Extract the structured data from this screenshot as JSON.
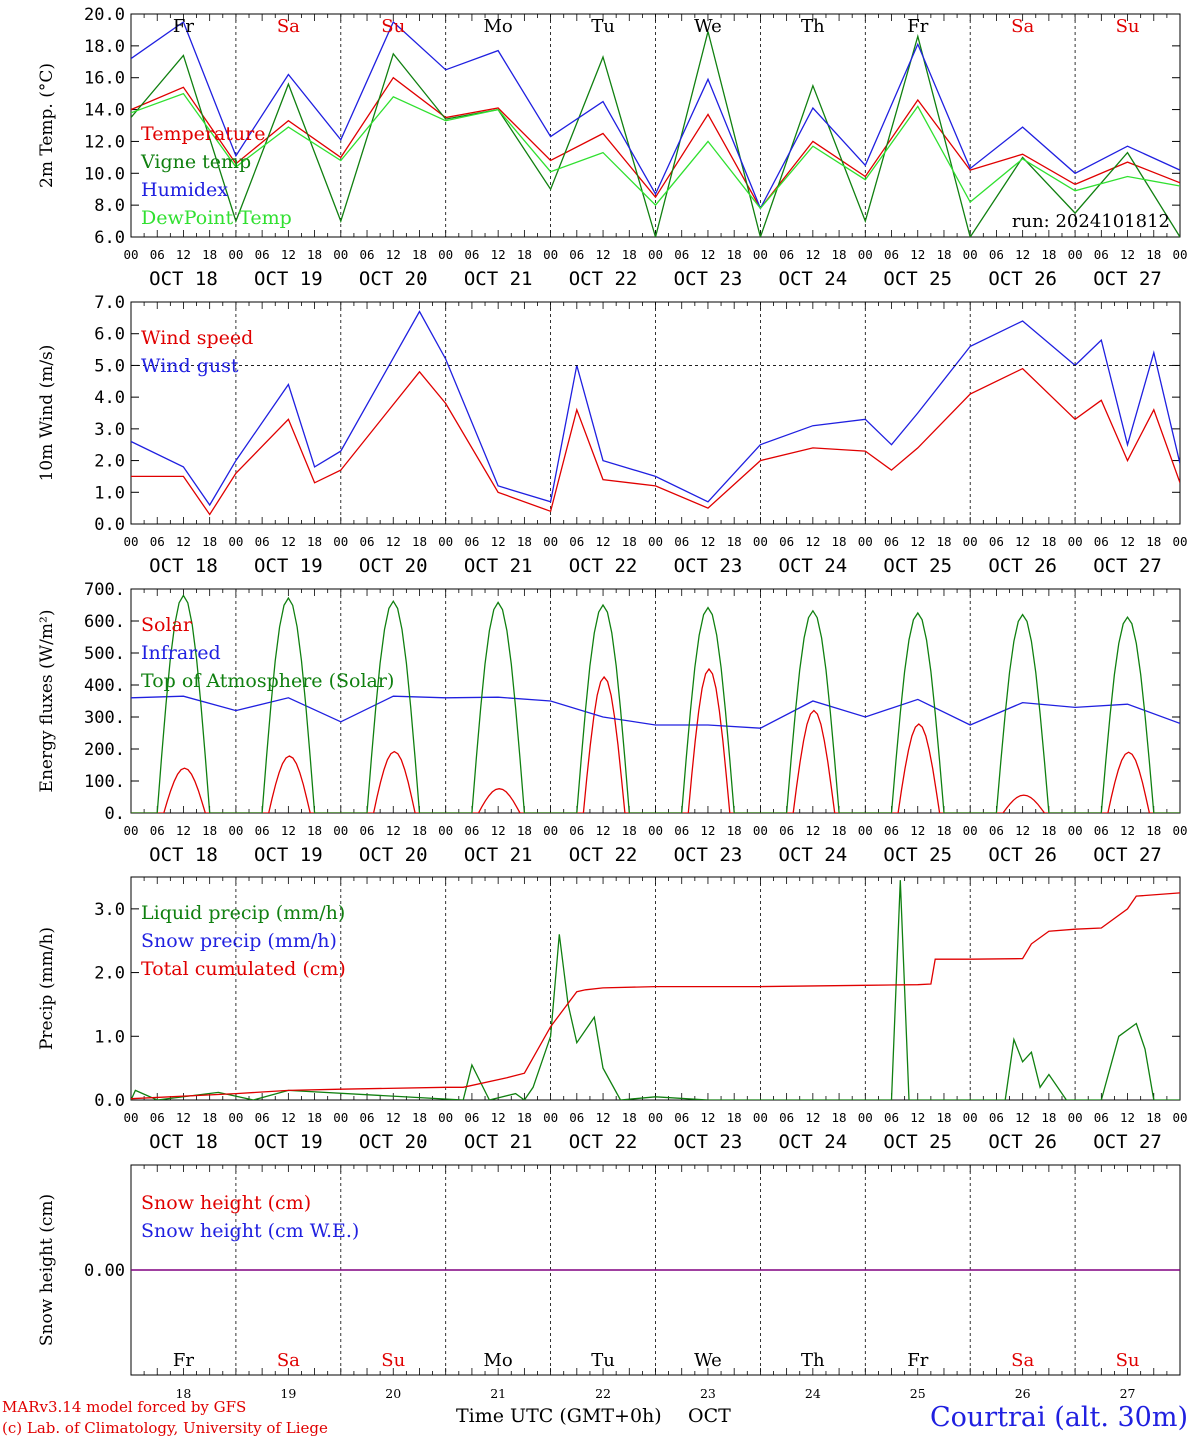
{
  "run_label": "run: 2024101812",
  "footer": {
    "model": "MARv3.14 model forced by GFS",
    "credit": "(c) Lab. of Climatology, University of Liege",
    "axis_title": "Time UTC (GMT+0h)",
    "month": "OCT",
    "location": "Courtrai (alt. 30m)"
  },
  "days": [
    {
      "abbr": "Fr",
      "date": "OCT 18",
      "num": "18",
      "weekend": false
    },
    {
      "abbr": "Sa",
      "date": "OCT 19",
      "num": "19",
      "weekend": true
    },
    {
      "abbr": "Su",
      "date": "OCT 20",
      "num": "20",
      "weekend": true
    },
    {
      "abbr": "Mo",
      "date": "OCT 21",
      "num": "21",
      "weekend": false
    },
    {
      "abbr": "Tu",
      "date": "OCT 22",
      "num": "22",
      "weekend": false
    },
    {
      "abbr": "We",
      "date": "OCT 23",
      "num": "23",
      "weekend": false
    },
    {
      "abbr": "Th",
      "date": "OCT 24",
      "num": "24",
      "weekend": false
    },
    {
      "abbr": "Fr",
      "date": "OCT 25",
      "num": "25",
      "weekend": false
    },
    {
      "abbr": "Sa",
      "date": "OCT 26",
      "num": "26",
      "weekend": true
    },
    {
      "abbr": "Su",
      "date": "OCT 27",
      "num": "27",
      "weekend": true
    }
  ],
  "hour_labels": [
    "00",
    "06",
    "12",
    "18"
  ],
  "colors": {
    "red": "#e00000",
    "green": "#108010",
    "blue": "#2020e0",
    "light_green": "#30e030",
    "purple": "#800080"
  },
  "chart_data": [
    {
      "type": "line",
      "ylabel": "2m Temp. (°C)",
      "ylim": [
        6,
        20
      ],
      "ytick_labels": [
        "6.0",
        "8.0",
        "10.0",
        "12.0",
        "14.0",
        "16.0",
        "18.0",
        "20.0"
      ],
      "yticks": [
        6,
        8,
        10,
        12,
        14,
        16,
        18,
        20
      ],
      "x": [
        0,
        12,
        24,
        36,
        48,
        60,
        72,
        84,
        96,
        108,
        120,
        132,
        144,
        156,
        168,
        180,
        192,
        204,
        216,
        228,
        240
      ],
      "series": [
        {
          "name": "Temperature",
          "color": "#e00000",
          "values": [
            14.0,
            15.4,
            10.6,
            13.3,
            11.0,
            16.0,
            13.5,
            14.1,
            10.8,
            12.5,
            8.5,
            13.7,
            7.8,
            12.0,
            9.8,
            14.6,
            10.2,
            11.2,
            9.3,
            10.7,
            9.4
          ]
        },
        {
          "name": "Vigne temp",
          "color": "#108010",
          "values": [
            13.5,
            17.4,
            7.0,
            15.6,
            7.0,
            17.5,
            13.4,
            14.0,
            9.0,
            17.3,
            6.0,
            18.9,
            6.0,
            15.5,
            7.0,
            18.6,
            6.0,
            11.0,
            7.5,
            11.3,
            6.0
          ]
        },
        {
          "name": "Humidex",
          "color": "#2020e0",
          "values": [
            17.2,
            19.5,
            11.1,
            16.2,
            12.1,
            19.5,
            16.5,
            17.7,
            12.3,
            14.5,
            8.7,
            15.9,
            7.8,
            14.1,
            10.5,
            18.1,
            10.3,
            12.9,
            10.0,
            11.7,
            10.2
          ]
        },
        {
          "name": "DewPoint Temp",
          "color": "#30e030",
          "values": [
            13.8,
            15.0,
            10.4,
            12.9,
            10.8,
            14.8,
            13.3,
            14.0,
            10.1,
            11.3,
            8.0,
            12.0,
            7.8,
            11.7,
            9.6,
            14.2,
            8.2,
            10.9,
            8.9,
            9.8,
            9.2
          ]
        }
      ]
    },
    {
      "type": "line",
      "ylabel": "10m Wind (m/s)",
      "ylim": [
        0,
        7
      ],
      "ytick_labels": [
        "0.0",
        "1.0",
        "2.0",
        "3.0",
        "4.0",
        "5.0",
        "6.0",
        "7.0"
      ],
      "yticks": [
        0,
        1,
        2,
        3,
        4,
        5,
        6,
        7
      ],
      "x": [
        0,
        12,
        18,
        24,
        36,
        42,
        48,
        66,
        72,
        84,
        96,
        102,
        108,
        120,
        132,
        144,
        156,
        168,
        174,
        180,
        192,
        204,
        216,
        222,
        228,
        234,
        240
      ],
      "series": [
        {
          "name": "Wind speed",
          "color": "#e00000",
          "values": [
            1.5,
            1.5,
            0.3,
            1.6,
            3.3,
            1.3,
            1.7,
            4.8,
            3.8,
            1.0,
            0.4,
            3.6,
            1.4,
            1.2,
            0.5,
            2.0,
            2.4,
            2.3,
            1.7,
            2.4,
            4.1,
            4.9,
            3.3,
            3.9,
            2.0,
            3.6,
            1.3
          ]
        },
        {
          "name": "Wind gust",
          "color": "#2020e0",
          "values": [
            2.6,
            1.8,
            0.6,
            2.0,
            4.4,
            1.8,
            2.3,
            6.7,
            5.2,
            1.2,
            0.7,
            5.0,
            2.0,
            1.5,
            0.7,
            2.5,
            3.1,
            3.3,
            2.5,
            3.5,
            5.6,
            6.4,
            5.0,
            5.8,
            2.5,
            5.4,
            1.9
          ]
        }
      ]
    },
    {
      "type": "line",
      "ylabel": "Energy fluxes (W/m²)",
      "ylim": [
        0,
        700
      ],
      "ytick_labels": [
        "0.",
        "100.",
        "200.",
        "300.",
        "400.",
        "500.",
        "600.",
        "700."
      ],
      "yticks": [
        0,
        100,
        200,
        300,
        400,
        500,
        600,
        700
      ],
      "series": [
        {
          "name": "Solar",
          "color": "#e00000",
          "daily_peak": [
            140,
            178,
            192,
            76,
            425,
            450,
            320,
            278,
            56,
            190
          ]
        },
        {
          "name": "Infrared",
          "color": "#2020e0",
          "x": [
            0,
            12,
            24,
            36,
            48,
            60,
            72,
            84,
            96,
            108,
            120,
            132,
            144,
            156,
            168,
            180,
            192,
            204,
            216,
            228,
            240
          ],
          "values": [
            360,
            365,
            320,
            360,
            285,
            365,
            360,
            362,
            350,
            300,
            275,
            275,
            265,
            350,
            300,
            355,
            275,
            345,
            330,
            340,
            280
          ]
        },
        {
          "name": "Top of Atmosphere (Solar)",
          "color": "#108010",
          "daily_peak": [
            680,
            672,
            662,
            658,
            650,
            642,
            632,
            625,
            620,
            612
          ]
        }
      ]
    },
    {
      "type": "line",
      "ylabel": "Precip (mm/h)",
      "ylim": [
        0,
        3.5
      ],
      "ytick_labels": [
        "0.0",
        "1.0",
        "2.0",
        "3.0"
      ],
      "yticks": [
        0,
        1,
        2,
        3
      ],
      "series": [
        {
          "name": "Liquid precip (mm/h)",
          "color": "#108010",
          "x": [
            0,
            1,
            6,
            20,
            28,
            36,
            76,
            78,
            82,
            88,
            90,
            92,
            96,
            98,
            100,
            102,
            106,
            108,
            112,
            120,
            132,
            144,
            174,
            176,
            178,
            180,
            186,
            200,
            202,
            204,
            206,
            208,
            210,
            214,
            222,
            226,
            230,
            232,
            234,
            240
          ],
          "values": [
            0,
            0.15,
            0,
            0.12,
            0,
            0.15,
            0,
            0.55,
            0,
            0.1,
            0,
            0.2,
            1.0,
            2.6,
            1.5,
            0.9,
            1.3,
            0.5,
            0,
            0.05,
            0,
            0,
            0,
            3.45,
            0,
            0,
            0,
            0,
            0.95,
            0.6,
            0.75,
            0.2,
            0.4,
            0,
            0,
            1.0,
            1.2,
            0.8,
            0,
            0
          ]
        },
        {
          "name": "Snow precip (mm/h)",
          "color": "#2020e0",
          "values": []
        },
        {
          "name": "Total cumulated (cm)",
          "color": "#e00000",
          "x": [
            0,
            24,
            36,
            48,
            72,
            76,
            86,
            90,
            96,
            102,
            104,
            108,
            120,
            144,
            168,
            180,
            183,
            184,
            192,
            204,
            206,
            210,
            216,
            222,
            228,
            230,
            240
          ],
          "values": [
            0.02,
            0.1,
            0.15,
            0.17,
            0.2,
            0.2,
            0.35,
            0.42,
            1.15,
            1.7,
            1.73,
            1.76,
            1.78,
            1.78,
            1.8,
            1.81,
            1.82,
            2.21,
            2.21,
            2.22,
            2.45,
            2.65,
            2.68,
            2.7,
            3.0,
            3.2,
            3.25
          ]
        }
      ]
    },
    {
      "type": "line",
      "ylabel": "Snow height (cm)",
      "ylim": [
        -1,
        1
      ],
      "ytick_labels": [
        "0.00"
      ],
      "yticks": [
        0
      ],
      "series": [
        {
          "name": "Snow height (cm)",
          "color": "#e00000",
          "values": [
            0,
            0
          ]
        },
        {
          "name": "Snow height (cm W.E.)",
          "color": "#2020e0",
          "values": [
            0,
            0
          ]
        }
      ]
    }
  ]
}
